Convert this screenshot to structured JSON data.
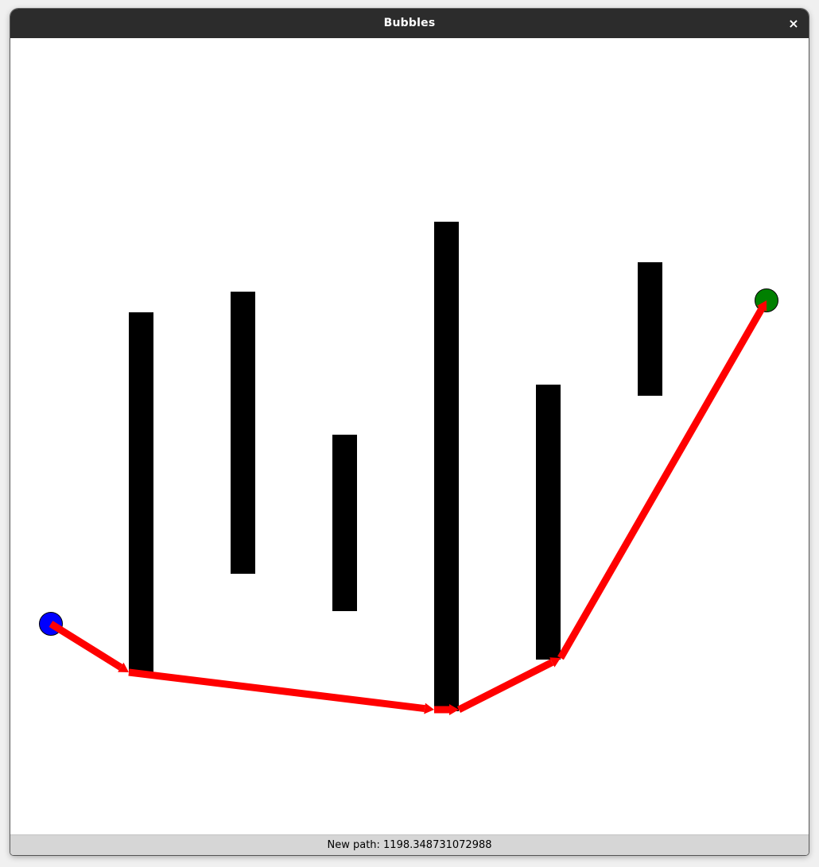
{
  "window": {
    "title": "Bubbles",
    "close_glyph": "×"
  },
  "status": {
    "text": "New path: 1198.348731072988"
  },
  "scene": {
    "obstacle_color": "#000000",
    "path_color": "#ff0000",
    "start_color": "#0000ff",
    "goal_color": "#008000",
    "obstacles": [
      {
        "name": "obstacle-1"
      },
      {
        "name": "obstacle-2"
      },
      {
        "name": "obstacle-3"
      },
      {
        "name": "obstacle-4"
      },
      {
        "name": "obstacle-5"
      },
      {
        "name": "obstacle-6"
      }
    ],
    "path_segments": 6
  }
}
